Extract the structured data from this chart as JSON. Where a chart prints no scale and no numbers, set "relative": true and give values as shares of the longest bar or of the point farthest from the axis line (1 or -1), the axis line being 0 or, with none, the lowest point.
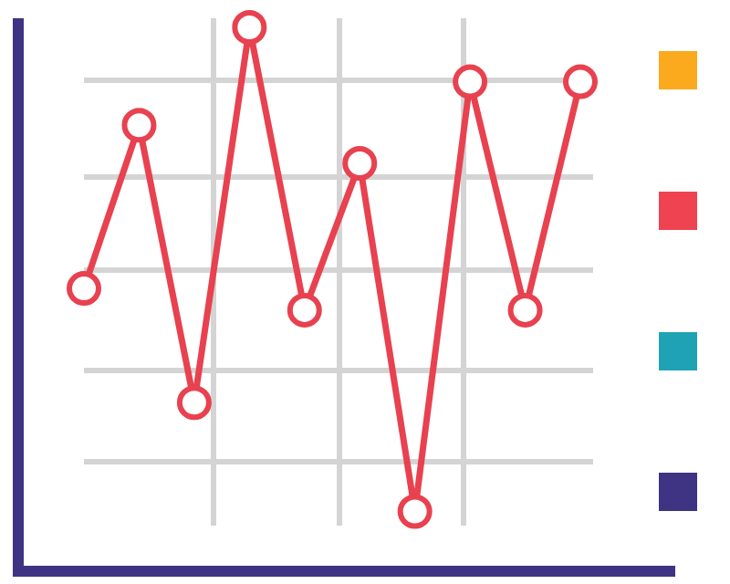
{
  "chart_data": {
    "type": "line",
    "relative": true,
    "categories": [
      null,
      null,
      null,
      null,
      null,
      null,
      null,
      null,
      null,
      null
    ],
    "series": [
      {
        "color": "#e8414f",
        "values": [
          0.52,
          0.82,
          0.31,
          1,
          0.48,
          0.75,
          0.11,
          0.9,
          0.48,
          0.9
        ]
      }
    ],
    "marker": "circle",
    "line_style": "solid",
    "grid": true
  }
}
